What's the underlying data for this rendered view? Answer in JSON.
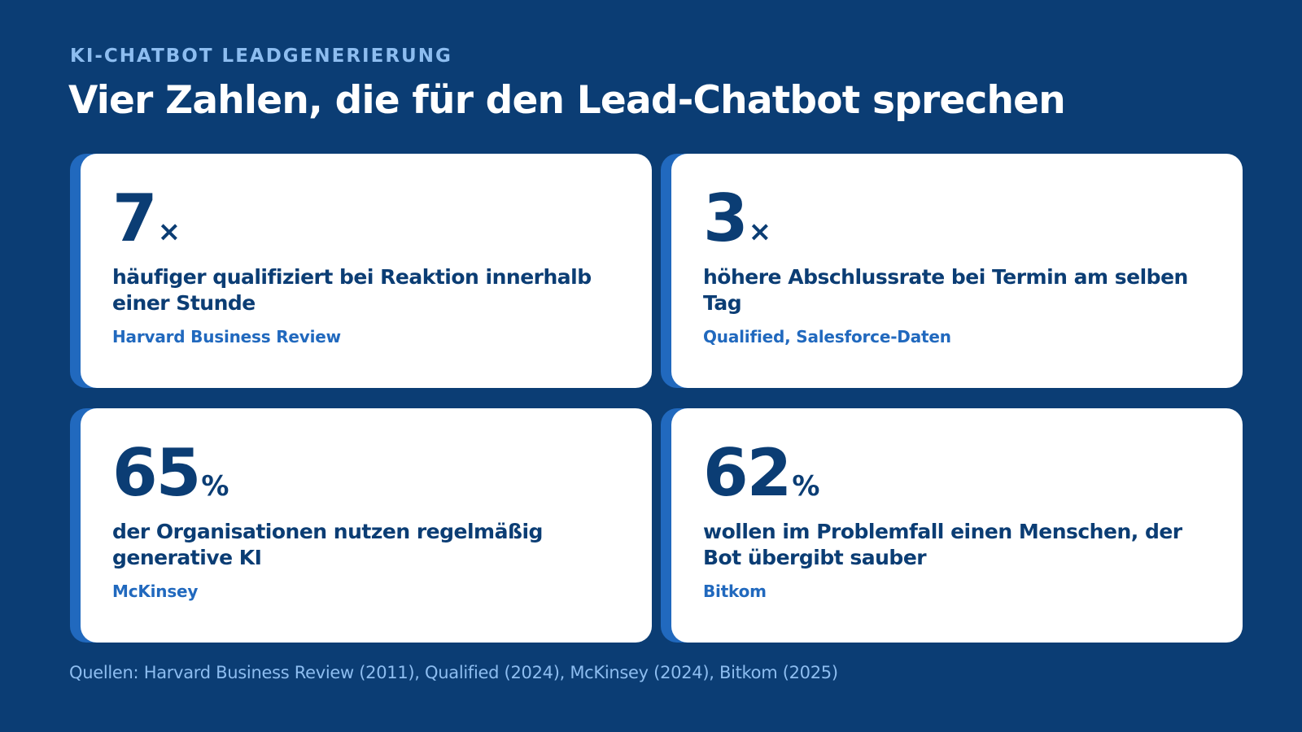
{
  "header": {
    "eyebrow": "KI-CHATBOT LEADGENERIERUNG",
    "title": "Vier Zahlen, die für den Lead-Chatbot sprechen"
  },
  "cards": [
    {
      "number": "7",
      "unit": "×",
      "description": "häufiger qualifiziert bei Reaktion innerhalb einer Stunde",
      "source": "Harvard Business Review"
    },
    {
      "number": "3",
      "unit": "×",
      "description": "höhere Abschlussrate bei Termin am selben Tag",
      "source": "Qualified, Salesforce-Daten"
    },
    {
      "number": "65",
      "unit": "%",
      "description": "der Organisationen nutzen regelmäßig generative KI",
      "source": "McKinsey"
    },
    {
      "number": "62",
      "unit": "%",
      "description": "wollen im Problemfall einen Menschen, der Bot übergibt sauber",
      "source": "Bitkom"
    }
  ],
  "footer": {
    "sources": "Quellen: Harvard Business Review (2011), Qualified (2024), McKinsey (2024), Bitkom (2025)"
  },
  "colors": {
    "background": "#0b3d74",
    "card": "#ffffff",
    "accent": "#2169be",
    "eyebrow": "#8dbdf0",
    "text": "#0b3d74"
  }
}
